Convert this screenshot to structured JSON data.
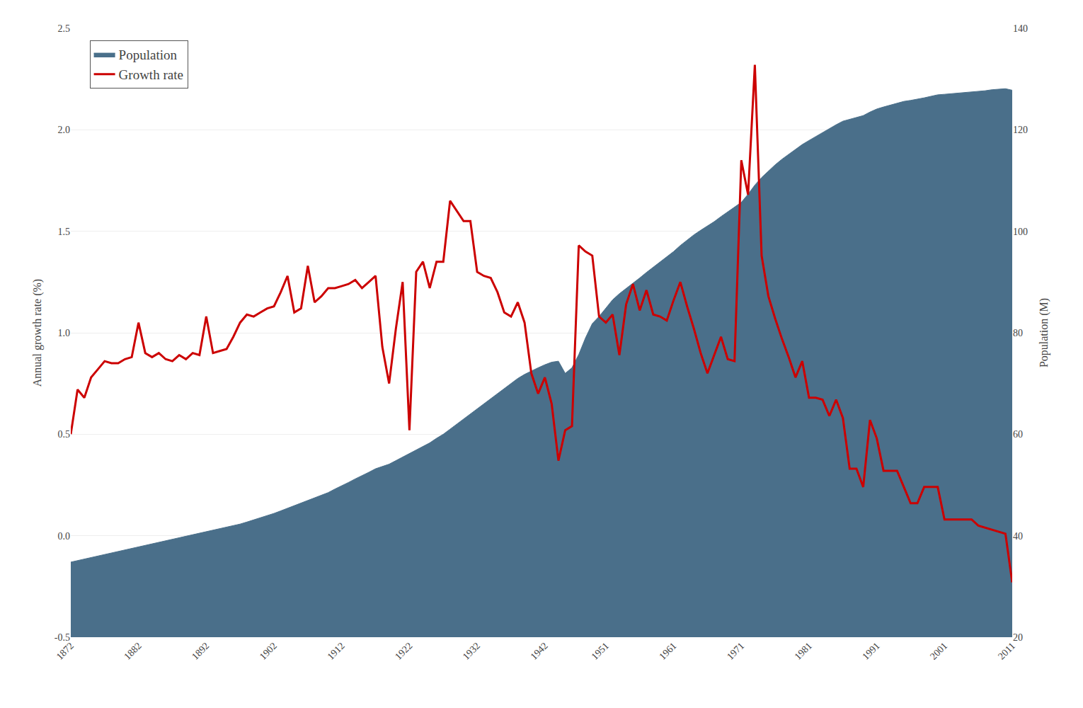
{
  "chart_data": {
    "type": "line",
    "x": [
      1872,
      1873,
      1874,
      1875,
      1876,
      1877,
      1878,
      1879,
      1880,
      1881,
      1882,
      1883,
      1884,
      1885,
      1886,
      1887,
      1888,
      1889,
      1890,
      1891,
      1892,
      1893,
      1894,
      1895,
      1896,
      1897,
      1898,
      1899,
      1900,
      1901,
      1902,
      1903,
      1904,
      1905,
      1906,
      1907,
      1908,
      1909,
      1910,
      1911,
      1912,
      1913,
      1914,
      1915,
      1916,
      1917,
      1918,
      1919,
      1920,
      1921,
      1922,
      1923,
      1924,
      1925,
      1926,
      1927,
      1928,
      1929,
      1930,
      1931,
      1932,
      1933,
      1934,
      1935,
      1936,
      1937,
      1938,
      1939,
      1940,
      1941,
      1942,
      1943,
      1944,
      1945,
      1946,
      1947,
      1948,
      1949,
      1950,
      1951,
      1952,
      1953,
      1954,
      1955,
      1956,
      1957,
      1958,
      1959,
      1960,
      1961,
      1962,
      1963,
      1964,
      1965,
      1966,
      1967,
      1968,
      1969,
      1970,
      1971,
      1972,
      1973,
      1974,
      1975,
      1976,
      1977,
      1978,
      1979,
      1980,
      1981,
      1982,
      1983,
      1984,
      1985,
      1986,
      1987,
      1988,
      1989,
      1990,
      1991,
      1992,
      1993,
      1994,
      1995,
      1996,
      1997,
      1998,
      1999,
      2000,
      2001,
      2002,
      2003,
      2004,
      2005,
      2006,
      2007,
      2008,
      2009,
      2010,
      2011
    ],
    "series": [
      {
        "name": "Population",
        "type": "area",
        "color": "#4a6f8a",
        "axis": "y2",
        "values": [
          34.8,
          35.1,
          35.3,
          35.6,
          35.9,
          36.2,
          36.5,
          36.8,
          37.1,
          37.4,
          37.7,
          38.0,
          38.3,
          38.6,
          38.9,
          39.2,
          39.5,
          39.8,
          40.1,
          40.4,
          40.7,
          41.0,
          41.3,
          41.6,
          41.9,
          42.3,
          42.7,
          43.1,
          43.5,
          43.9,
          44.4,
          44.9,
          45.4,
          45.9,
          46.4,
          46.9,
          47.4,
          47.9,
          48.5,
          49.2,
          49.8,
          50.5,
          51.2,
          51.8,
          52.5,
          53.2,
          53.7,
          54.1,
          54.8,
          55.5,
          56.2,
          56.8,
          57.6,
          58.3,
          59.2,
          60.0,
          61.0,
          62.0,
          63.0,
          64.0,
          65.0,
          66.0,
          67.0,
          68.0,
          69.0,
          70.0,
          71.0,
          71.8,
          72.5,
          73.1,
          73.7,
          74.2,
          74.4,
          72.0,
          73.1,
          75.7,
          79.0,
          81.8,
          83.2,
          84.9,
          86.5,
          87.7,
          88.7,
          89.8,
          90.8,
          91.9,
          92.9,
          93.9,
          94.9,
          96.0,
          97.2,
          98.3,
          99.3,
          100.2,
          101.0,
          101.9,
          102.9,
          103.8,
          104.7,
          105.7,
          107.3,
          109.1,
          110.6,
          111.9,
          113.1,
          114.2,
          115.2,
          116.1,
          117.1,
          117.9,
          118.7,
          119.5,
          120.2,
          121.0,
          121.7,
          122.1,
          122.5,
          122.8,
          123.5,
          124.1,
          124.5,
          124.9,
          125.3,
          125.6,
          125.8,
          126.0,
          126.3,
          126.6,
          126.9,
          127.0,
          127.1,
          127.2,
          127.3,
          127.4,
          127.5,
          127.7,
          127.9,
          128.0,
          128.1,
          127.8
        ]
      },
      {
        "name": "Growth rate",
        "type": "line",
        "color": "#cc0000",
        "values": [
          0.5,
          0.72,
          0.68,
          0.78,
          0.82,
          0.86,
          0.85,
          0.85,
          0.87,
          0.88,
          1.05,
          0.9,
          0.88,
          0.9,
          0.87,
          0.86,
          0.89,
          0.87,
          0.9,
          0.89,
          1.08,
          0.9,
          0.91,
          0.92,
          0.98,
          1.05,
          1.09,
          1.08,
          1.1,
          1.12,
          1.13,
          1.2,
          1.28,
          1.1,
          1.12,
          1.33,
          1.15,
          1.18,
          1.22,
          1.22,
          1.23,
          1.24,
          1.26,
          1.22,
          1.25,
          1.28,
          0.93,
          0.75,
          1.02,
          1.25,
          0.52,
          1.3,
          1.35,
          1.22,
          1.35,
          1.35,
          1.65,
          1.6,
          1.55,
          1.55,
          1.3,
          1.28,
          1.27,
          1.2,
          1.1,
          1.08,
          1.15,
          1.05,
          0.8,
          0.7,
          0.78,
          0.65,
          0.37,
          0.52,
          0.54,
          1.43,
          1.4,
          1.38,
          1.08,
          1.05,
          1.09,
          0.89,
          1.14,
          1.24,
          1.11,
          1.21,
          1.09,
          1.08,
          1.06,
          1.16,
          1.25,
          1.13,
          1.02,
          0.9,
          0.8,
          0.89,
          0.98,
          0.87,
          0.86,
          1.85,
          1.68,
          2.32,
          1.38,
          1.18,
          1.07,
          0.97,
          0.88,
          0.78,
          0.86,
          0.68,
          0.68,
          0.67,
          0.59,
          0.67,
          0.58,
          0.33,
          0.33,
          0.24,
          0.57,
          0.48,
          0.32,
          0.32,
          0.32,
          0.24,
          0.16,
          0.16,
          0.24,
          0.24,
          0.24,
          0.08,
          0.08,
          0.08,
          0.08,
          0.08,
          0.05,
          0.04,
          0.03,
          0.02,
          0.01,
          -0.23
        ]
      }
    ],
    "ylabel": "Annual growth rate (%)",
    "y2label": "Population (M)",
    "xlim": [
      1872,
      2011
    ],
    "xticks": [
      1872,
      1882,
      1892,
      1902,
      1912,
      1922,
      1932,
      1942,
      1951,
      1961,
      1971,
      1981,
      1991,
      2001,
      2011
    ],
    "ylim": [
      -0.5,
      2.5
    ],
    "yticks": [
      -0.5,
      {
        "value": 0,
        "label": "0.0"
      },
      0.5,
      {
        "value": 1,
        "label": "1.0"
      },
      1.5,
      {
        "value": 2,
        "label": "2.0"
      },
      2.5
    ],
    "y2lim": [
      20,
      140
    ],
    "y2ticks": [
      20,
      40,
      60,
      80,
      100,
      120,
      140
    ],
    "grid": true,
    "legend": "upper left"
  }
}
